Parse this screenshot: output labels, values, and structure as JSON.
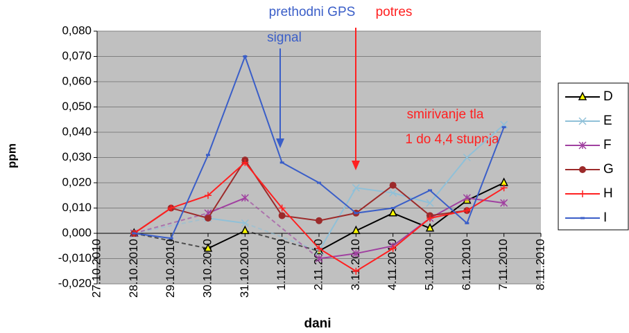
{
  "chart_data": {
    "type": "line",
    "xlabel": "dani",
    "ylabel": "ppm",
    "categories": [
      "27.10.2010",
      "28.10.2010",
      "29.10.2010",
      "30.10.2010",
      "31.10.2010",
      "1.11.2010",
      "2.11.2010",
      "3.11.2010",
      "4.11.2010",
      "5.11.2010",
      "6.11.2010",
      "7.11.2010",
      "8.11.2010"
    ],
    "ylim": [
      -0.02,
      0.08
    ],
    "yticks": [
      {
        "value": -0.02,
        "label": "-0,020"
      },
      {
        "value": -0.01,
        "label": "-0,010"
      },
      {
        "value": 0,
        "label": "0,000"
      },
      {
        "value": 0.01,
        "label": "0,010"
      },
      {
        "value": 0.02,
        "label": "0,020"
      },
      {
        "value": 0.03,
        "label": "0,030"
      },
      {
        "value": 0.04,
        "label": "0,040"
      },
      {
        "value": 0.05,
        "label": "0,050"
      },
      {
        "value": 0.06,
        "label": "0,060"
      },
      {
        "value": 0.07,
        "label": "0,070"
      },
      {
        "value": 0.08,
        "label": "0,080"
      }
    ],
    "grid": true,
    "legend": "right",
    "annotations": [
      "prethodni GPS",
      "signal",
      "potres",
      "smirivanje tla",
      "1 do 4,4 stupnja"
    ],
    "series": [
      {
        "name": "D",
        "color": "#000000",
        "marker": "triangle",
        "values": [
          null,
          0,
          null,
          -0.006,
          0.001,
          null,
          -0.007,
          0.001,
          0.008,
          0.002,
          0.013,
          0.02,
          null
        ]
      },
      {
        "name": "E",
        "color": "#8fc0d8",
        "marker": "x",
        "values": [
          null,
          0,
          null,
          0.006,
          0.004,
          null,
          -0.007,
          0.018,
          0.016,
          0.012,
          0.03,
          0.043,
          null
        ]
      },
      {
        "name": "F",
        "color": "#a040a0",
        "marker": "star",
        "values": [
          null,
          0,
          null,
          0.008,
          0.014,
          null,
          -0.01,
          -0.008,
          -0.005,
          0.006,
          0.014,
          0.012,
          null
        ]
      },
      {
        "name": "G",
        "color": "#9c2a2a",
        "marker": "circle",
        "values": [
          null,
          0,
          0.01,
          0.006,
          0.029,
          0.007,
          0.005,
          0.008,
          0.019,
          0.007,
          0.009,
          null,
          null
        ]
      },
      {
        "name": "H",
        "color": "#ff2020",
        "marker": "plus",
        "values": [
          null,
          0,
          0.01,
          0.015,
          0.028,
          0.01,
          -0.006,
          -0.015,
          -0.006,
          0.006,
          0.009,
          0.018,
          null
        ]
      },
      {
        "name": "I",
        "color": "#3a5ec8",
        "marker": "dash",
        "values": [
          null,
          0,
          -0.002,
          0.031,
          0.07,
          0.028,
          0.02,
          0.008,
          0.01,
          0.017,
          0.004,
          0.042,
          null
        ]
      }
    ]
  }
}
